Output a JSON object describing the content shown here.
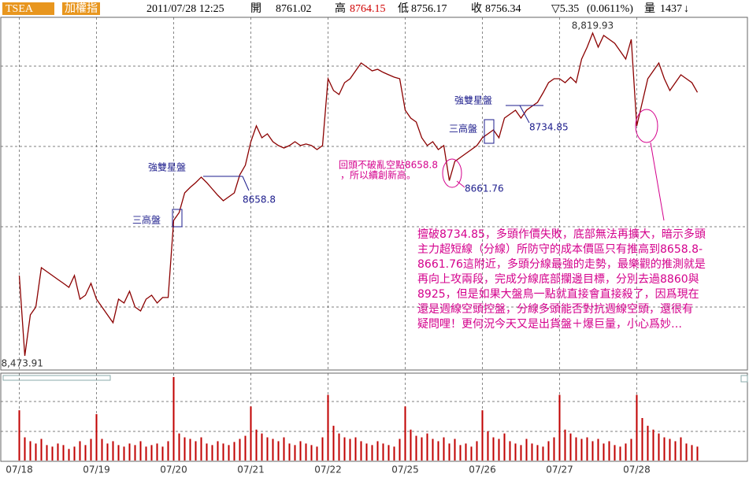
{
  "header": {
    "symbol": "TSEA",
    "name": "加權指",
    "datetime": "2011/07/28 12:25",
    "open_label": "開",
    "open": "8761.02",
    "high_label": "高",
    "high": "8764.15",
    "low_label": "低",
    "low": "8756.17",
    "close_label": "收",
    "close": "8756.34",
    "change": "▽5.35",
    "change_pct": "(0.0611%)",
    "volume_label": "量",
    "volume": "1437",
    "volume_arrow": "↓"
  },
  "chart_data": {
    "type": "stock",
    "price": {
      "color": "#8b0000",
      "values": [
        8560.0,
        8473.91,
        8517.8,
        8526.2,
        8568.4,
        8564.2,
        8560.0,
        8555.8,
        8551.6,
        8547.3,
        8560.0,
        8534.7,
        8538.9,
        8551.6,
        8534.7,
        8526.2,
        8517.8,
        8509.4,
        8534.7,
        8530.5,
        8543.1,
        8526.2,
        8522.0,
        8534.7,
        8538.9,
        8530.5,
        8536.4,
        8536.4,
        8619.1,
        8627.5,
        8648.6,
        8654.5,
        8659.6,
        8665.5,
        8659.6,
        8652.8,
        8646.1,
        8640.2,
        8644.4,
        8648.6,
        8668.0,
        8678.2,
        8703.5,
        8720.4,
        8707.7,
        8711.9,
        8703.5,
        8699.3,
        8696.7,
        8699.3,
        8703.5,
        8699.3,
        8701.0,
        8699.3,
        8695.0,
        8699.3,
        8771.0,
        8758.3,
        8754.1,
        8766.8,
        8771.0,
        8779.4,
        8787.9,
        8783.7,
        8779.4,
        8781.1,
        8777.8,
        8775.2,
        8772.7,
        8771.0,
        8737.2,
        8728.8,
        8724.6,
        8707.7,
        8699.3,
        8703.5,
        8695.0,
        8699.3,
        8661.76,
        8682.4,
        8686.6,
        8690.8,
        8695.0,
        8699.3,
        8707.7,
        8711.9,
        8716.1,
        8707.7,
        8728.8,
        8733.0,
        8737.2,
        8728.8,
        8737.2,
        8741.5,
        8745.7,
        8755.8,
        8766.8,
        8771.0,
        8771.0,
        8766.8,
        8772.7,
        8766.8,
        8792.1,
        8804.8,
        8819.93,
        8804.8,
        8817.4,
        8813.2,
        8809.0,
        8800.5,
        8792.1,
        8813.2,
        8720.4,
        8745.7,
        8771.0,
        8779.4,
        8787.9,
        8771.0,
        8758.3,
        8766.8,
        8775.2,
        8771.0,
        8766.8,
        8756.34
      ]
    },
    "volume": {
      "color": "#c00000",
      "ylim": [
        0,
        110
      ],
      "values": [
        65,
        30,
        25,
        22,
        28,
        20,
        18,
        22,
        20,
        15,
        18,
        25,
        20,
        28,
        60,
        28,
        22,
        25,
        20,
        18,
        22,
        20,
        25,
        18,
        20,
        22,
        18,
        25,
        108,
        35,
        30,
        28,
        25,
        30,
        22,
        20,
        25,
        22,
        20,
        24,
        28,
        32,
        70,
        40,
        35,
        30,
        28,
        25,
        30,
        22,
        20,
        25,
        22,
        20,
        18,
        30,
        85,
        45,
        35,
        30,
        28,
        30,
        25,
        22,
        20,
        25,
        22,
        20,
        18,
        28,
        70,
        40,
        32,
        30,
        35,
        28,
        25,
        30,
        22,
        28,
        20,
        22,
        18,
        25,
        65,
        38,
        30,
        28,
        35,
        25,
        22,
        20,
        28,
        22,
        20,
        18,
        25,
        30,
        85,
        40,
        35,
        30,
        28,
        30,
        25,
        28,
        22,
        25,
        20,
        18,
        22,
        28,
        85,
        55,
        45,
        40,
        35,
        30,
        28,
        25,
        30,
        22,
        20,
        18
      ]
    },
    "ylim": [
      8458.7,
      8838.5
    ],
    "xlim": [
      -3.5,
      132.36
    ],
    "grid": true,
    "xticks": [
      {
        "value": 0,
        "label": "07/18"
      },
      {
        "value": 14,
        "label": "07/19"
      },
      {
        "value": 28,
        "label": "07/20"
      },
      {
        "value": 42,
        "label": "07/21"
      },
      {
        "value": 56,
        "label": "07/22"
      },
      {
        "value": 70,
        "label": "07/25"
      },
      {
        "value": 84,
        "label": "07/26"
      },
      {
        "value": 98,
        "label": "07/27"
      },
      {
        "value": 112,
        "label": "07/28"
      }
    ],
    "max_label": {
      "value": 8819.93,
      "label": "8,819.93"
    },
    "min_label": {
      "value": 8473.91,
      "label": "8,473.91"
    },
    "annotations": {
      "double_star_1": "強雙星盤",
      "three_high_1": "三高盤",
      "level_1": "8658.8",
      "double_star_2": "強雙星盤",
      "three_high_2": "三高盤",
      "level_2": "8734.85",
      "pullback_1": "回頭不破亂空點8658.8",
      "pullback_2": "，所以續創新高。",
      "low_level": "8661.76",
      "note": [
        "擅破8734.85，多頭作價失敗，底部無法再擴大，暗示多頭",
        "主力超短線（分線）所防守的成本價區只有推高到8658.8-",
        "8661.76這附近，多頭分線最強的走勢，最樂觀的推測就是",
        "再向上攻兩段，完成分線底部攔邊目標，分別去過8860與",
        "8925，但是如果大盤鳥一點就直接會直接殺了，因爲現在",
        "還是週線空頭控盤，分線多頭能否對抗週線空頭，還很有",
        "疑問哩！更何況今天又是出貨盤＋爆巨量，小心爲妙…"
      ]
    }
  }
}
